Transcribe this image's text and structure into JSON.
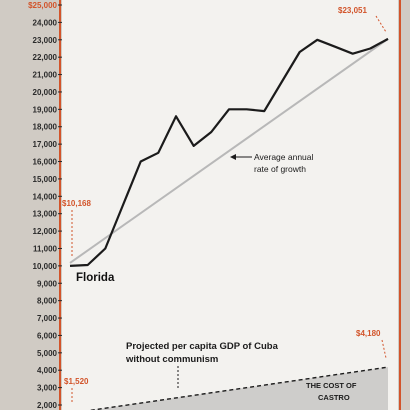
{
  "chart_data": {
    "type": "line",
    "y_axis": {
      "min": 2000,
      "max": 25000,
      "tick_labels": [
        "2,000",
        "3,000",
        "4,000",
        "5,000",
        "6,000",
        "7,000",
        "8,000",
        "9,000",
        "10,000",
        "11,000",
        "12,000",
        "13,000",
        "14,000",
        "15,000",
        "16,000",
        "17,000",
        "18,000",
        "19,000",
        "20,000",
        "21,000",
        "22,000",
        "23,000",
        "24,000",
        "$25,000"
      ]
    },
    "series": [
      {
        "name": "Florida",
        "values": [
          10000,
          10050,
          11000,
          13500,
          16000,
          16500,
          18600,
          16900,
          17700,
          19000,
          19000,
          18900,
          20600,
          22300,
          23000,
          22600,
          22200,
          22500,
          23051
        ]
      }
    ],
    "trend_line": {
      "start": 10168,
      "end": 23051,
      "label": "Average annual rate of growth"
    },
    "cuba": {
      "start": 1520,
      "end": 4180,
      "label_line1": "Projected per capita GDP of Cuba",
      "label_line2": "without communism",
      "cost_label_line1": "THE COST OF",
      "cost_label_line2": "CASTRO"
    },
    "labels": {
      "florida_start": "$10,168",
      "florida_end": "$23,051",
      "cuba_start": "$1,520",
      "cuba_end": "$4,180",
      "trend_line1": "Average annual",
      "trend_line2": "rate of growth",
      "series_name": "Florida"
    },
    "colors": {
      "accent": "#d2542a",
      "line": "#1b1b1b",
      "trend": "#b8b8b8",
      "plot_bg": "#f3f2ef",
      "frame": "#d0cbc4"
    }
  }
}
